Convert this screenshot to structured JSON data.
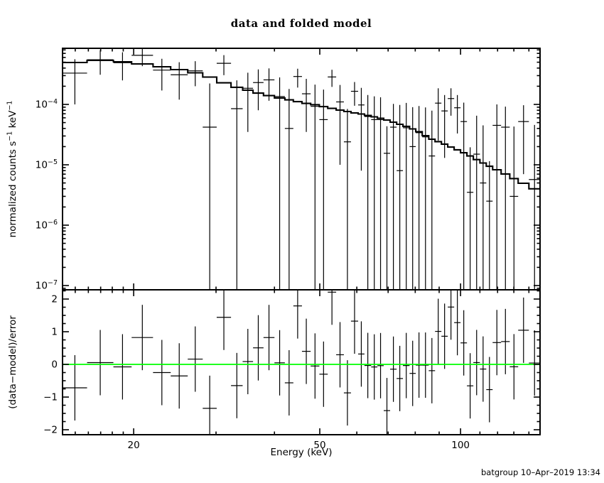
{
  "title": "data and folded model",
  "footer": "batgroup 10–Apr–2019 13:34",
  "colors": {
    "foreground": "#000000",
    "background": "#ffffff",
    "model_line": "#000000",
    "data_points": "#000000",
    "zero_line": "#00ff00"
  },
  "chart_data": {
    "type": "scatter",
    "subtype": "xspec-spectrum-with-residuals",
    "title": "data and folded model",
    "x_axis": {
      "label": "Energy (keV)",
      "scale": "log",
      "min": 14.09,
      "max": 147.9,
      "major_ticks": [
        20,
        50,
        100
      ],
      "minor_ticks": [
        15,
        16,
        17,
        18,
        19,
        30,
        40,
        60,
        70,
        80,
        90,
        110,
        120,
        130,
        140
      ]
    },
    "top_panel": {
      "ylabel_parts": [
        {
          "t": "normalized counts s"
        },
        {
          "t": "−1",
          "sup": true
        },
        {
          "t": " keV"
        },
        {
          "t": "−1",
          "sup": true
        }
      ],
      "scale": "log",
      "ymin": 8.5e-08,
      "ymax": 0.00085,
      "major_tick_exponents": [
        -4,
        -5,
        -6,
        -7
      ],
      "legend": "data = crosses with error bars, folded model = stepped histogram"
    },
    "bottom_panel": {
      "ylabel": "(data−model)/error",
      "ymin": -2.152,
      "ymax": 2.283,
      "major_ticks": [
        -2,
        -1,
        0,
        1,
        2
      ],
      "minor_tick_step": 0.25,
      "residual_bar_halflength_sigma": 1,
      "zero_line_color": "#00ff00"
    },
    "bins": {
      "edges_kev": [
        14.1,
        15.9,
        18.1,
        19.8,
        22.0,
        24.0,
        26.1,
        28.1,
        30.1,
        32.3,
        34.2,
        36.0,
        37.9,
        40.0,
        42.1,
        43.9,
        45.8,
        47.8,
        49.9,
        52.0,
        54.2,
        56.3,
        58.3,
        60.4,
        62.3,
        64.4,
        66.4,
        68.5,
        70.7,
        73.0,
        75.3,
        77.8,
        80.2,
        82.8,
        85.5,
        88.2,
        91.0,
        93.9,
        96.9,
        100.0,
        103.2,
        106.5,
        110.0,
        113.5,
        117.1,
        122.1,
        127.4,
        132.8,
        140.0,
        148.0
      ],
      "model": [
        0.000495,
        0.000537,
        0.000508,
        0.000469,
        0.00042,
        0.000377,
        0.000334,
        0.000284,
        0.000228,
        0.000192,
        0.000172,
        0.000154,
        0.00014,
        0.000128,
        0.000119,
        0.000111,
        0.000104,
        9.9e-05,
        9.2e-05,
        8.6e-05,
        8.05e-05,
        7.63e-05,
        7.23e-05,
        6.94e-05,
        6.57e-05,
        6.23e-05,
        5.89e-05,
        5.51e-05,
        5.08e-05,
        4.69e-05,
        4.33e-05,
        3.93e-05,
        3.53e-05,
        3.04e-05,
        2.65e-05,
        2.42e-05,
        2.2e-05,
        1.97e-05,
        1.77e-05,
        1.58e-05,
        1.4e-05,
        1.22e-05,
        1.07e-05,
        9.45e-06,
        8.27e-06,
        7.05e-06,
        5.91e-06,
        4.95e-06,
        4e-06
      ],
      "data": [
        0.00033,
        0.00055,
        0.00049,
        0.00065,
        0.00037,
        0.00031,
        0.00036,
        4.2e-05,
        0.00048,
        8.5e-05,
        0.000185,
        0.00023,
        0.000255,
        0.000135,
        4e-05,
        0.00029,
        0.00015,
        9.3e-05,
        5.6e-05,
        0.000285,
        0.00011,
        2.4e-05,
        0.000165,
        9.8e-05,
        6.3e-05,
        5.6e-05,
        5.6e-05,
        1.55e-05,
        4.2e-05,
        8e-06,
        4.1e-05,
        2e-05,
        3.4e-05,
        2.9e-05,
        1.4e-05,
        0.000105,
        7.8e-05,
        0.000125,
        8.8e-05,
        5.2e-05,
        3.5e-06,
        1.5e-05,
        5e-06,
        2.5e-06,
        4.5e-05,
        4.2e-05,
        3e-06,
        5.2e-05,
        5.7e-06
      ],
      "error": [
        0.00023,
        0.00024,
        0.00024,
        0.00022,
        0.0002,
        0.00019,
        0.00016,
        0.00018,
        0.000175,
        0.000165,
        0.00015,
        0.00015,
        0.00014,
        0.000145,
        0.00014,
        0.0001,
        0.000115,
        0.00012,
        0.00012,
        9e-05,
        0.0001,
        6e-05,
        7e-05,
        9e-05,
        8e-05,
        8e-05,
        7.5e-05,
        2.8e-05,
        6e-05,
        9e-05,
        6.5e-05,
        7e-05,
        6e-05,
        6e-05,
        6.5e-05,
        8e-05,
        6.5e-05,
        6e-05,
        5.5e-05,
        5.5e-05,
        1.6e-05,
        5e-05,
        4e-05,
        9e-06,
        5.5e-05,
        5e-05,
        4e-05,
        4.5e-05,
        4e-05
      ]
    }
  }
}
